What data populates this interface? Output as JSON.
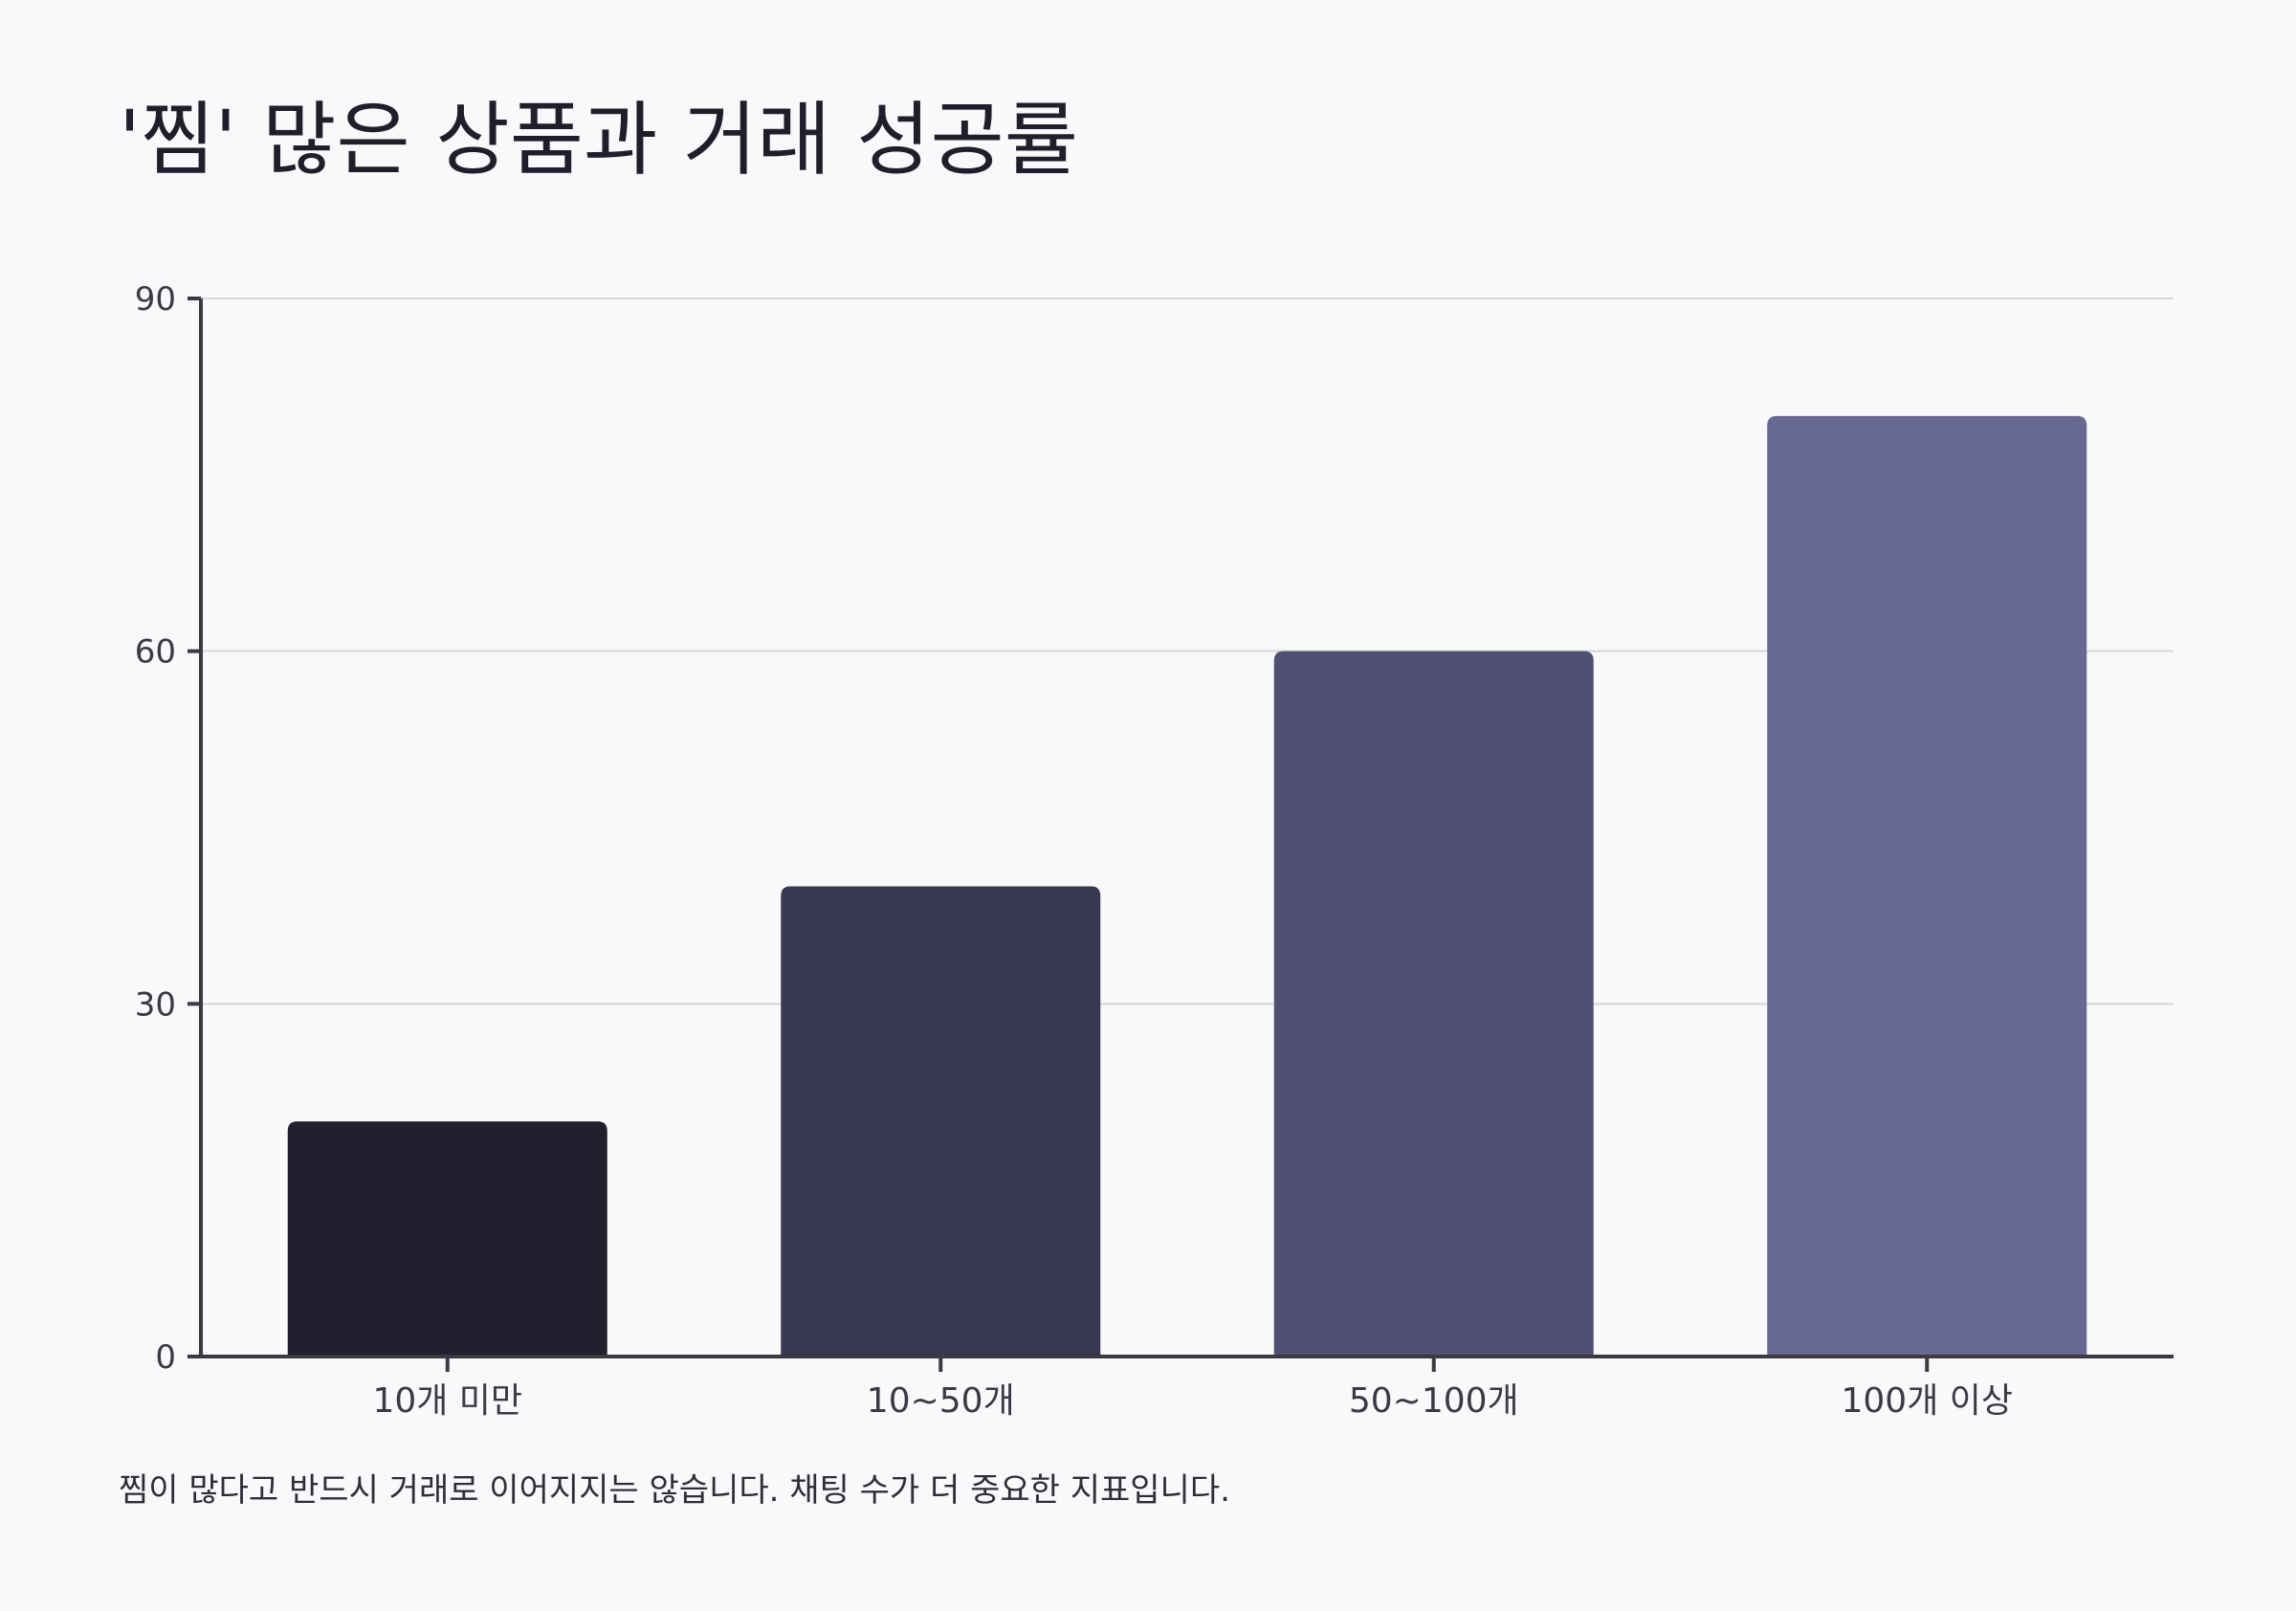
{
  "chart_data": {
    "type": "bar",
    "title": "'찜' 많은 상품과 거래 성공률",
    "xlabel": "",
    "ylabel": "",
    "categories": [
      "10개 미만",
      "10~50개",
      "50~100개",
      "100개 이상"
    ],
    "values": [
      20,
      40,
      60,
      80
    ],
    "ylim": [
      0,
      90
    ],
    "yticks": [
      0,
      30,
      60,
      90
    ],
    "grid": true,
    "legend": "none",
    "colors": [
      "#20202e",
      "#383850",
      "#505074",
      "#686894"
    ],
    "footnote": "찜이 많다고 반드시 거래로 이어지지는 않습니다. 채팅 수가 더 중요한 지표입니다."
  },
  "style": {
    "axis_color": "#3a3a40",
    "grid_color": "#d6d6da",
    "background": "#f9f9fb"
  }
}
